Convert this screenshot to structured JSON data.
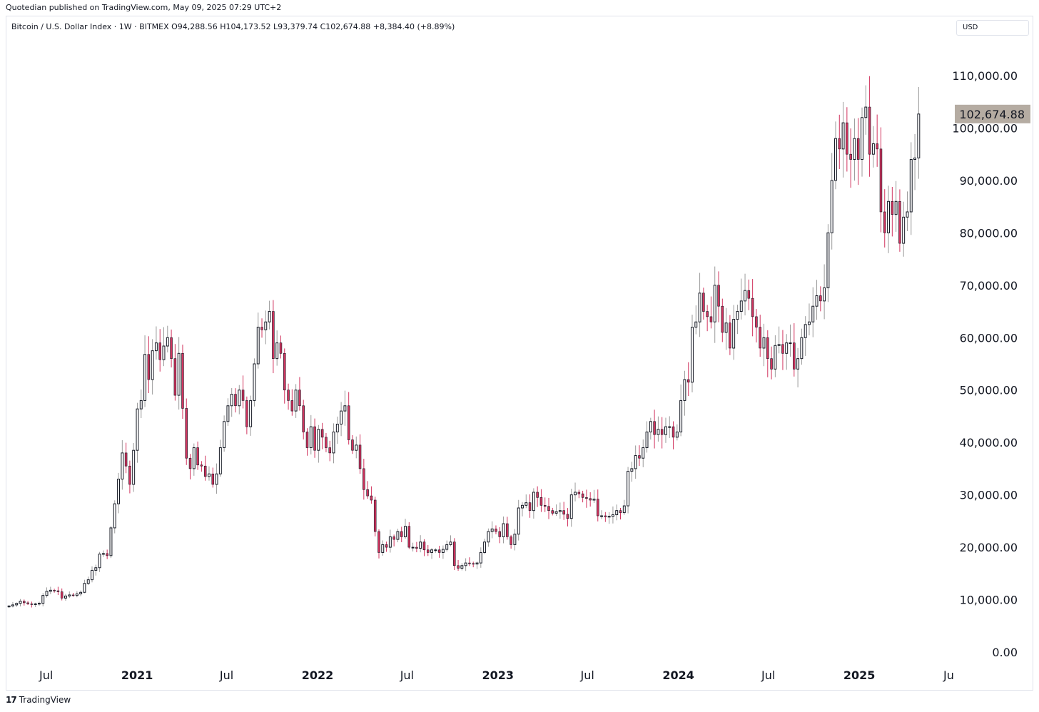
{
  "header": {
    "publisher": "Quotedian published on TradingView.com, May 09, 2025 07:29 UTC+2"
  },
  "legend": {
    "text": "Bitcoin / U.S. Dollar Index · 1W · BITMEX   O94,288.56  H104,173.52  L93,379.74  C102,674.88  +8,384.40 (+8.89%)"
  },
  "currency_label": "USD",
  "footer": {
    "logo_glyph": "17",
    "brand": "TradingView"
  },
  "colors": {
    "up": "#131722",
    "down": "#d1335e",
    "last_price_bg": "#b5aca2",
    "wick_up": "#9a9a9a"
  },
  "chart_data": {
    "type": "candlestick",
    "series_name": "Bitcoin / U.S. Dollar Index",
    "interval": "1W",
    "exchange": "BITMEX",
    "last_price": 102674.88,
    "last_price_label": "102,674.88",
    "open": 94288.56,
    "high": 104173.52,
    "low": 93379.74,
    "close": 102674.88,
    "change": "+8,384.40 (+8.89%)",
    "ylim": [
      0,
      110000
    ],
    "y_ticks": [
      {
        "value": 0,
        "label": "0.00"
      },
      {
        "value": 10000,
        "label": "10,000.00"
      },
      {
        "value": 20000,
        "label": "20,000.00"
      },
      {
        "value": 30000,
        "label": "30,000.00"
      },
      {
        "value": 40000,
        "label": "40,000.00"
      },
      {
        "value": 50000,
        "label": "50,000.00"
      },
      {
        "value": 60000,
        "label": "60,000.00"
      },
      {
        "value": 70000,
        "label": "70,000.00"
      },
      {
        "value": 80000,
        "label": "80,000.00"
      },
      {
        "value": 90000,
        "label": "90,000.00"
      },
      {
        "value": 100000,
        "label": "100,000.00"
      },
      {
        "value": 110000,
        "label": "110,000.00"
      }
    ],
    "x_ticks": [
      {
        "date": "2020-07-01",
        "label": "Jul",
        "bold": false
      },
      {
        "date": "2021-01-01",
        "label": "2021",
        "bold": true
      },
      {
        "date": "2021-07-01",
        "label": "Jul",
        "bold": false
      },
      {
        "date": "2022-01-01",
        "label": "2022",
        "bold": true
      },
      {
        "date": "2022-07-01",
        "label": "Jul",
        "bold": false
      },
      {
        "date": "2023-01-01",
        "label": "2023",
        "bold": true
      },
      {
        "date": "2023-07-01",
        "label": "Jul",
        "bold": false
      },
      {
        "date": "2024-01-01",
        "label": "2024",
        "bold": true
      },
      {
        "date": "2024-07-01",
        "label": "Jul",
        "bold": false
      },
      {
        "date": "2025-01-01",
        "label": "2025",
        "bold": true
      },
      {
        "date": "2025-07-01",
        "label": "Ju",
        "bold": false
      }
    ],
    "x_range": [
      "2020-04-13",
      "2025-05-05"
    ],
    "grid": false,
    "closes": [
      8800,
      9000,
      9300,
      9700,
      9400,
      9200,
      9100,
      9200,
      9300,
      10800,
      11600,
      11800,
      11700,
      11500,
      10300,
      10700,
      10900,
      10800,
      11100,
      11400,
      13100,
      13800,
      15600,
      16100,
      18700,
      18800,
      18400,
      23700,
      28300,
      33000,
      38000,
      35500,
      32000,
      38500,
      46400,
      48000,
      56800,
      52000,
      57500,
      59000,
      55800,
      58400,
      60000,
      56000,
      49000,
      57000,
      46500,
      37000,
      35000,
      39000,
      35700,
      35500,
      33500,
      34000,
      32000,
      34000,
      39000,
      44000,
      47000,
      49200,
      47000,
      50000,
      48000,
      43000,
      48000,
      55000,
      62000,
      61500,
      63000,
      65000,
      56000,
      59000,
      57000,
      50000,
      48000,
      46000,
      50000,
      47000,
      42000,
      39000,
      43000,
      38500,
      42500,
      41000,
      39000,
      38000,
      42000,
      43500,
      46000,
      47000,
      40500,
      38500,
      39500,
      35000,
      31000,
      29800,
      29000,
      23000,
      19000,
      20500,
      20000,
      22000,
      21500,
      23000,
      22000,
      24000,
      20000,
      20000,
      19800,
      21000,
      19500,
      19000,
      19500,
      19500,
      19000,
      19600,
      20500,
      21000,
      16500,
      16000,
      16500,
      17000,
      16900,
      16800,
      17000,
      19000,
      21000,
      23000,
      23500,
      23000,
      22000,
      24500,
      22000,
      20500,
      22500,
      27500,
      28000,
      28500,
      27000,
      30500,
      29500,
      28000,
      27800,
      27000,
      26500,
      26800,
      27000,
      26300,
      25500,
      30000,
      30500,
      30200,
      29500,
      29300,
      29000,
      29200,
      26000,
      26000,
      25800,
      25900,
      26200,
      27000,
      26600,
      27900,
      34500,
      35000,
      37500,
      37000,
      39000,
      42000,
      44000,
      41500,
      42500,
      41500,
      43000,
      43000,
      41000,
      42000,
      48000,
      52000,
      51500,
      62000,
      63000,
      68500,
      65000,
      64000,
      63000,
      70000,
      66000,
      61000,
      62800,
      58000,
      63500,
      65000,
      67000,
      69000,
      67500,
      64000,
      62000,
      58000,
      60000,
      56000,
      54000,
      58500,
      58700,
      57000,
      59000,
      59000,
      54000,
      56000,
      60000,
      62500,
      63000,
      66000,
      68000,
      67000,
      69500,
      80000,
      90000,
      98000,
      96000,
      101000,
      95000,
      94000,
      98000,
      94000,
      102000,
      104000,
      95000,
      97000,
      96000,
      84000,
      80000,
      86000,
      83500,
      86000,
      78000,
      83000,
      84000,
      94000,
      94288.56,
      102674.88
    ]
  }
}
